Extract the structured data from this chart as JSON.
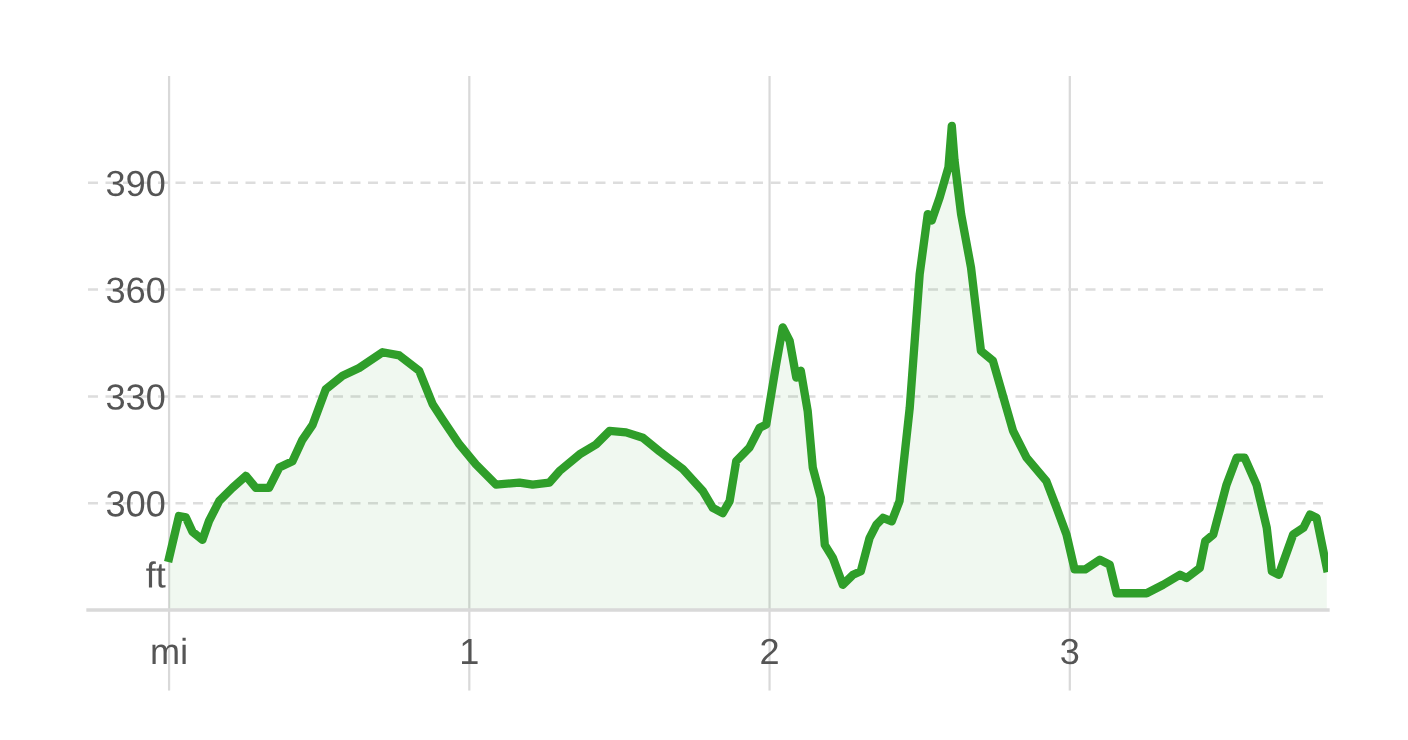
{
  "chart_data": {
    "type": "area",
    "x": [
      0,
      0.033,
      0.056,
      0.078,
      0.111,
      0.133,
      0.167,
      0.211,
      0.256,
      0.289,
      0.333,
      0.367,
      0.411,
      0.444,
      0.478,
      0.522,
      0.578,
      0.633,
      0.711,
      0.767,
      0.833,
      0.878,
      0.911,
      0.967,
      1.022,
      1.089,
      1.167,
      1.211,
      1.267,
      1.3,
      1.367,
      1.422,
      1.467,
      1.522,
      1.578,
      1.633,
      1.711,
      1.778,
      1.811,
      1.844,
      1.867,
      1.889,
      1.933,
      1.967,
      1.989,
      2.022,
      2.044,
      2.067,
      2.089,
      2.104,
      2.127,
      2.144,
      2.171,
      2.184,
      2.211,
      2.244,
      2.278,
      2.304,
      2.333,
      2.356,
      2.378,
      2.407,
      2.433,
      2.467,
      2.5,
      2.527,
      2.54,
      2.567,
      2.596,
      2.607,
      2.616,
      2.638,
      2.671,
      2.704,
      2.744,
      2.811,
      2.856,
      2.922,
      2.956,
      2.989,
      3.016,
      3.051,
      3.1,
      3.133,
      3.156,
      3.256,
      3.311,
      3.367,
      3.389,
      3.433,
      3.451,
      3.478,
      3.522,
      3.556,
      3.582,
      3.622,
      3.656,
      3.673,
      3.696,
      3.744,
      3.778,
      3.8,
      3.822,
      3.856
    ],
    "series": [
      {
        "color": "#2f9e2a",
        "values": [
          284.6,
          296.4,
          296,
          292,
          289.7,
          295,
          300.6,
          304.3,
          307.7,
          304.3,
          304.3,
          310,
          311.8,
          317.8,
          322,
          332,
          335.8,
          338,
          342.4,
          341.5,
          337.2,
          327.8,
          323.5,
          316.5,
          310.9,
          305.2,
          305.8,
          305.2,
          305.8,
          309,
          313.7,
          316.5,
          320.3,
          319.9,
          318.4,
          314.6,
          309.6,
          303.4,
          298.7,
          297.2,
          300.6,
          311.8,
          315.6,
          321.2,
          322.1,
          339,
          349.4,
          345.6,
          335.3,
          337.2,
          325.9,
          310,
          301.5,
          288.3,
          284.6,
          277.1,
          279.9,
          280.9,
          290.2,
          294,
          295.9,
          294.9,
          300.6,
          326.9,
          364.3,
          381.2,
          379.4,
          386,
          394.4,
          406,
          396.3,
          381.2,
          366.2,
          342.8,
          340,
          320.3,
          312.8,
          306.2,
          298.7,
          291.2,
          281.4,
          281.4,
          284.1,
          282.7,
          274.7,
          274.7,
          277.1,
          279.9,
          279,
          281.8,
          289.3,
          291.2,
          305.2,
          312.8,
          312.8,
          305.2,
          293.1,
          280.9,
          279.9,
          291.2,
          293.1,
          296.8,
          295.9,
          281.8
        ]
      }
    ],
    "xlim": [
      -0.27,
      3.86
    ],
    "ylim": [
      270,
      420
    ],
    "xticks": [
      {
        "value": 0,
        "label": "mi"
      },
      1,
      2,
      3
    ],
    "yticks": [
      {
        "value": 280,
        "label": "ft"
      },
      300,
      330,
      360,
      390
    ],
    "grid": true
  }
}
